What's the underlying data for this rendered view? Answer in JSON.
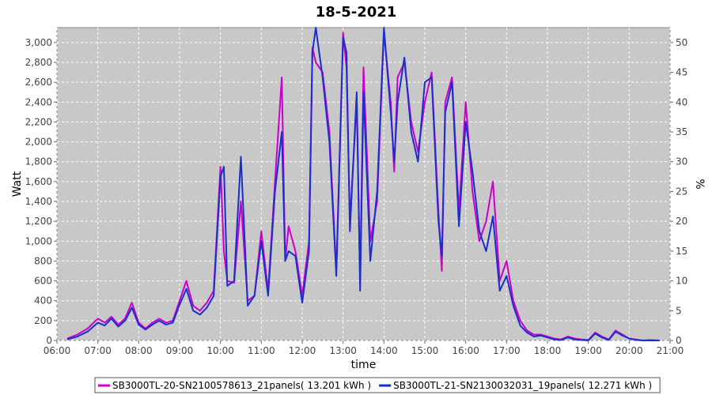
{
  "chart_data": {
    "type": "line",
    "title": "18-5-2021",
    "xlabel": "time",
    "ylabel": "Watt",
    "y2label": "%",
    "xlim": [
      "06:00",
      "21:00"
    ],
    "ylim": [
      0,
      3150
    ],
    "y2lim": [
      0,
      52.5
    ],
    "x_ticks": [
      "06:00",
      "07:00",
      "08:00",
      "09:00",
      "10:00",
      "11:00",
      "12:00",
      "13:00",
      "14:00",
      "15:00",
      "16:00",
      "17:00",
      "18:00",
      "19:00",
      "20:00",
      "21:00"
    ],
    "y_ticks": [
      "0",
      "200",
      "400",
      "600",
      "800",
      "1,000",
      "1,200",
      "1,400",
      "1,600",
      "1,800",
      "2,000",
      "2,200",
      "2,400",
      "2,600",
      "2,800",
      "3,000"
    ],
    "y2_ticks": [
      "0",
      "5",
      "10",
      "15",
      "20",
      "25",
      "30",
      "35",
      "40",
      "45",
      "50"
    ],
    "grid": true,
    "legend": "bottom",
    "background": "#c8c8c8",
    "series": [
      {
        "name": "SB3000TL-20-SN2100578613_21panels( 13.201 kWh )",
        "color": "#cc00cc",
        "x": [
          "06:15",
          "06:30",
          "06:45",
          "07:00",
          "07:10",
          "07:20",
          "07:30",
          "07:40",
          "07:50",
          "08:00",
          "08:10",
          "08:20",
          "08:30",
          "08:40",
          "08:50",
          "09:00",
          "09:10",
          "09:20",
          "09:30",
          "09:40",
          "09:50",
          "10:00",
          "10:05",
          "10:10",
          "10:20",
          "10:30",
          "10:40",
          "10:50",
          "11:00",
          "11:10",
          "11:20",
          "11:30",
          "11:35",
          "11:40",
          "11:50",
          "12:00",
          "12:10",
          "12:15",
          "12:20",
          "12:30",
          "12:40",
          "12:50",
          "13:00",
          "13:05",
          "13:10",
          "13:20",
          "13:25",
          "13:30",
          "13:40",
          "13:50",
          "14:00",
          "14:10",
          "14:15",
          "14:20",
          "14:30",
          "14:40",
          "14:50",
          "15:00",
          "15:10",
          "15:20",
          "15:25",
          "15:30",
          "15:40",
          "15:50",
          "16:00",
          "16:10",
          "16:20",
          "16:30",
          "16:40",
          "16:50",
          "17:00",
          "17:10",
          "17:20",
          "17:30",
          "17:40",
          "17:50",
          "18:00",
          "18:10",
          "18:20",
          "18:30",
          "18:40",
          "18:50",
          "19:00",
          "19:10",
          "19:20",
          "19:30",
          "19:40",
          "19:50",
          "20:00",
          "20:10",
          "20:20",
          "20:30",
          "20:45"
        ],
        "y": [
          20,
          60,
          120,
          220,
          180,
          240,
          160,
          220,
          380,
          180,
          120,
          180,
          220,
          180,
          200,
          400,
          600,
          350,
          300,
          380,
          500,
          1750,
          900,
          600,
          580,
          1400,
          400,
          450,
          1100,
          500,
          1600,
          2650,
          800,
          1150,
          900,
          450,
          1000,
          2950,
          2800,
          2700,
          2100,
          700,
          3100,
          2750,
          1200,
          2400,
          600,
          2750,
          1000,
          1400,
          3100,
          2400,
          1700,
          2650,
          2800,
          2200,
          1900,
          2400,
          2700,
          1300,
          700,
          2400,
          2650,
          1300,
          2400,
          1500,
          1000,
          1200,
          1600,
          600,
          800,
          400,
          200,
          100,
          60,
          60,
          40,
          20,
          10,
          40,
          20,
          10,
          5,
          80,
          40,
          10,
          100,
          60,
          20,
          10,
          0,
          5,
          0
        ]
      },
      {
        "name": "SB3000TL-21-SN2130032031_19panels( 12.271 kWh )",
        "color": "#1a2ecc",
        "x": [
          "06:15",
          "06:30",
          "06:45",
          "07:00",
          "07:10",
          "07:20",
          "07:30",
          "07:40",
          "07:50",
          "08:00",
          "08:10",
          "08:20",
          "08:30",
          "08:40",
          "08:50",
          "09:00",
          "09:10",
          "09:20",
          "09:30",
          "09:40",
          "09:50",
          "10:00",
          "10:05",
          "10:10",
          "10:20",
          "10:30",
          "10:40",
          "10:50",
          "11:00",
          "11:10",
          "11:20",
          "11:30",
          "11:35",
          "11:40",
          "11:50",
          "12:00",
          "12:10",
          "12:15",
          "12:20",
          "12:30",
          "12:40",
          "12:50",
          "13:00",
          "13:05",
          "13:10",
          "13:20",
          "13:25",
          "13:30",
          "13:40",
          "13:50",
          "14:00",
          "14:10",
          "14:15",
          "14:20",
          "14:30",
          "14:40",
          "14:50",
          "15:00",
          "15:10",
          "15:20",
          "15:25",
          "15:30",
          "15:40",
          "15:50",
          "16:00",
          "16:10",
          "16:20",
          "16:30",
          "16:40",
          "16:50",
          "17:00",
          "17:10",
          "17:20",
          "17:30",
          "17:40",
          "17:50",
          "18:00",
          "18:10",
          "18:20",
          "18:30",
          "18:40",
          "18:50",
          "19:00",
          "19:10",
          "19:20",
          "19:30",
          "19:40",
          "19:50",
          "20:00",
          "20:10",
          "20:20",
          "20:30",
          "20:45"
        ],
        "y": [
          10,
          40,
          90,
          180,
          150,
          220,
          140,
          200,
          330,
          160,
          110,
          160,
          200,
          160,
          180,
          360,
          520,
          300,
          260,
          330,
          450,
          1650,
          1750,
          550,
          600,
          1850,
          350,
          450,
          1000,
          450,
          1500,
          2100,
          800,
          900,
          850,
          380,
          900,
          2900,
          3150,
          2650,
          2000,
          650,
          3050,
          2900,
          1100,
          2500,
          500,
          2500,
          800,
          1500,
          3150,
          2300,
          1800,
          2400,
          2850,
          2100,
          1800,
          2600,
          2650,
          1200,
          850,
          2300,
          2600,
          1150,
          2200,
          1700,
          1100,
          900,
          1250,
          500,
          650,
          350,
          150,
          80,
          40,
          50,
          30,
          10,
          5,
          30,
          10,
          5,
          0,
          70,
          30,
          5,
          90,
          50,
          20,
          5,
          0,
          0,
          0
        ]
      }
    ]
  }
}
